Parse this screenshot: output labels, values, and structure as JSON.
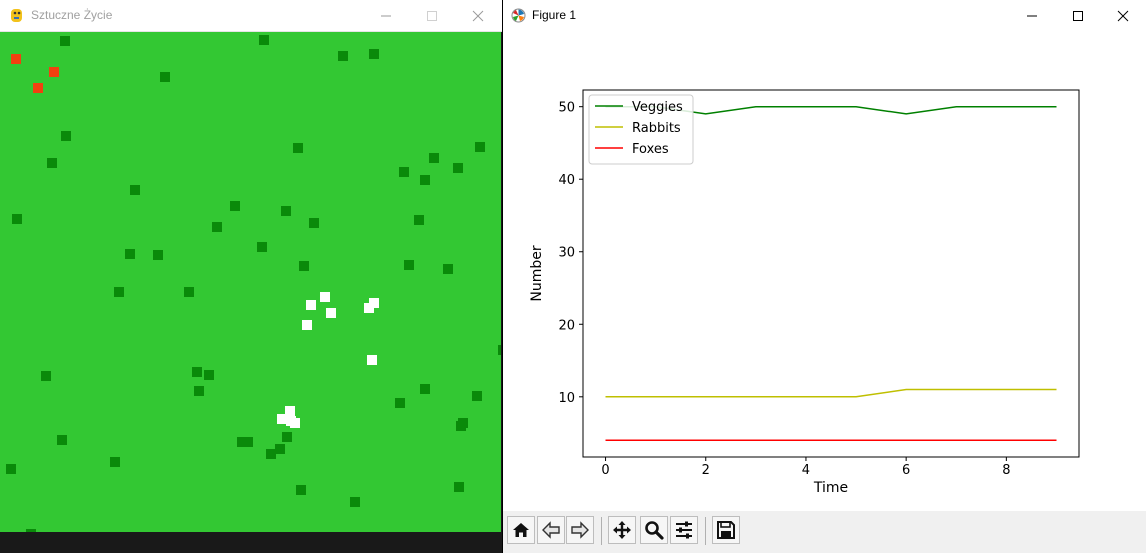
{
  "sim_window": {
    "title": "Sztuczne Życie",
    "icons": {
      "app": "pygame-snake-icon",
      "minimize": "minimize-icon",
      "maximize": "maximize-icon",
      "close": "close-icon"
    }
  },
  "figure_window": {
    "title": "Figure 1",
    "icons": {
      "app": "matplotlib-icon",
      "minimize": "minimize-icon",
      "maximize": "maximize-icon",
      "close": "close-icon"
    }
  },
  "colors": {
    "grass": "#33c833",
    "veggie": "#0a8a0a",
    "rabbit": "#ffffff",
    "fox": "#f24010"
  },
  "chart_data": {
    "type": "line",
    "x": [
      0,
      1,
      2,
      3,
      4,
      5,
      6,
      7,
      8,
      9
    ],
    "xlabel": "Time",
    "ylabel": "Number",
    "xticks": [
      0,
      2,
      4,
      6,
      8
    ],
    "yticks": [
      10,
      20,
      30,
      40,
      50
    ],
    "ylim": [
      1.7,
      52.3
    ],
    "xlim": [
      -0.45,
      9.45
    ],
    "legend_position": "upper-left",
    "series": [
      {
        "name": "Veggies",
        "color": "#008000",
        "values": [
          50,
          50,
          49,
          50,
          50,
          50,
          49,
          50,
          50,
          50
        ]
      },
      {
        "name": "Rabbits",
        "color": "#bfbf00",
        "values": [
          10,
          10,
          10,
          10,
          10,
          10,
          11,
          11,
          11,
          11
        ]
      },
      {
        "name": "Foxes",
        "color": "#ff0000",
        "values": [
          4,
          4,
          4,
          4,
          4,
          4,
          4,
          4,
          4,
          4
        ]
      }
    ]
  },
  "toolbar": {
    "buttons": [
      {
        "name": "home-button",
        "icon": "home-icon"
      },
      {
        "name": "back-button",
        "icon": "back-arrow-icon"
      },
      {
        "name": "forward-button",
        "icon": "forward-arrow-icon"
      },
      {
        "name": "pan-button",
        "icon": "pan-icon"
      },
      {
        "name": "zoom-button",
        "icon": "zoom-icon"
      },
      {
        "name": "subplots-button",
        "icon": "sliders-icon"
      },
      {
        "name": "save-button",
        "icon": "save-icon"
      }
    ]
  }
}
